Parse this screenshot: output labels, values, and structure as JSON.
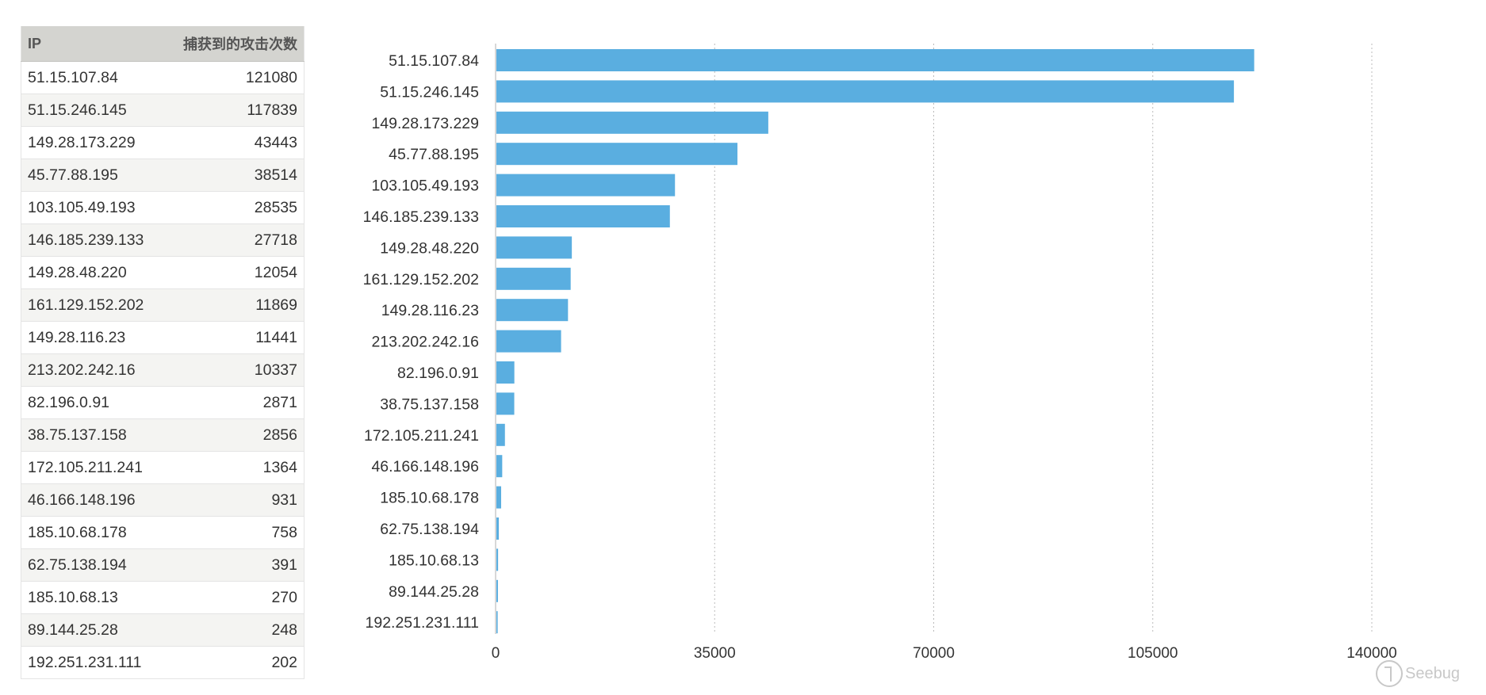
{
  "table": {
    "headers": [
      "IP",
      "捕获到的攻击次数"
    ],
    "rows": [
      {
        "ip": "51.15.107.84",
        "count": "121080"
      },
      {
        "ip": "51.15.246.145",
        "count": "117839"
      },
      {
        "ip": "149.28.173.229",
        "count": "43443"
      },
      {
        "ip": "45.77.88.195",
        "count": "38514"
      },
      {
        "ip": "103.105.49.193",
        "count": "28535"
      },
      {
        "ip": "146.185.239.133",
        "count": "27718"
      },
      {
        "ip": "149.28.48.220",
        "count": "12054"
      },
      {
        "ip": "161.129.152.202",
        "count": "11869"
      },
      {
        "ip": "149.28.116.23",
        "count": "11441"
      },
      {
        "ip": "213.202.242.16",
        "count": "10337"
      },
      {
        "ip": "82.196.0.91",
        "count": "2871"
      },
      {
        "ip": "38.75.137.158",
        "count": "2856"
      },
      {
        "ip": "172.105.211.241",
        "count": "1364"
      },
      {
        "ip": "46.166.148.196",
        "count": "931"
      },
      {
        "ip": "185.10.68.178",
        "count": "758"
      },
      {
        "ip": "62.75.138.194",
        "count": "391"
      },
      {
        "ip": "185.10.68.13",
        "count": "270"
      },
      {
        "ip": "89.144.25.28",
        "count": "248"
      },
      {
        "ip": "192.251.231.111",
        "count": "202"
      }
    ]
  },
  "chart_data": {
    "type": "bar",
    "orientation": "horizontal",
    "categories": [
      "51.15.107.84",
      "51.15.246.145",
      "149.28.173.229",
      "45.77.88.195",
      "103.105.49.193",
      "146.185.239.133",
      "149.28.48.220",
      "161.129.152.202",
      "149.28.116.23",
      "213.202.242.16",
      "82.196.0.91",
      "38.75.137.158",
      "172.105.211.241",
      "46.166.148.196",
      "185.10.68.178",
      "62.75.138.194",
      "185.10.68.13",
      "89.144.25.28",
      "192.251.231.111"
    ],
    "values": [
      121080,
      117839,
      43443,
      38514,
      28535,
      27718,
      12054,
      11869,
      11441,
      10337,
      2871,
      2856,
      1364,
      931,
      758,
      391,
      270,
      248,
      202
    ],
    "xlim": [
      0,
      140000
    ],
    "xticks": [
      0,
      35000,
      70000,
      105000,
      140000
    ],
    "xtick_labels": [
      "0",
      "35000",
      "70000",
      "105000",
      "140000"
    ],
    "grid": "vertical dashed",
    "bar_color": "#5aaee0",
    "grid_color": "#bbbbbb",
    "axis_color": "#cccccc"
  },
  "watermark": {
    "text": "Seebug",
    "icon": "seebug-logo-icon"
  }
}
